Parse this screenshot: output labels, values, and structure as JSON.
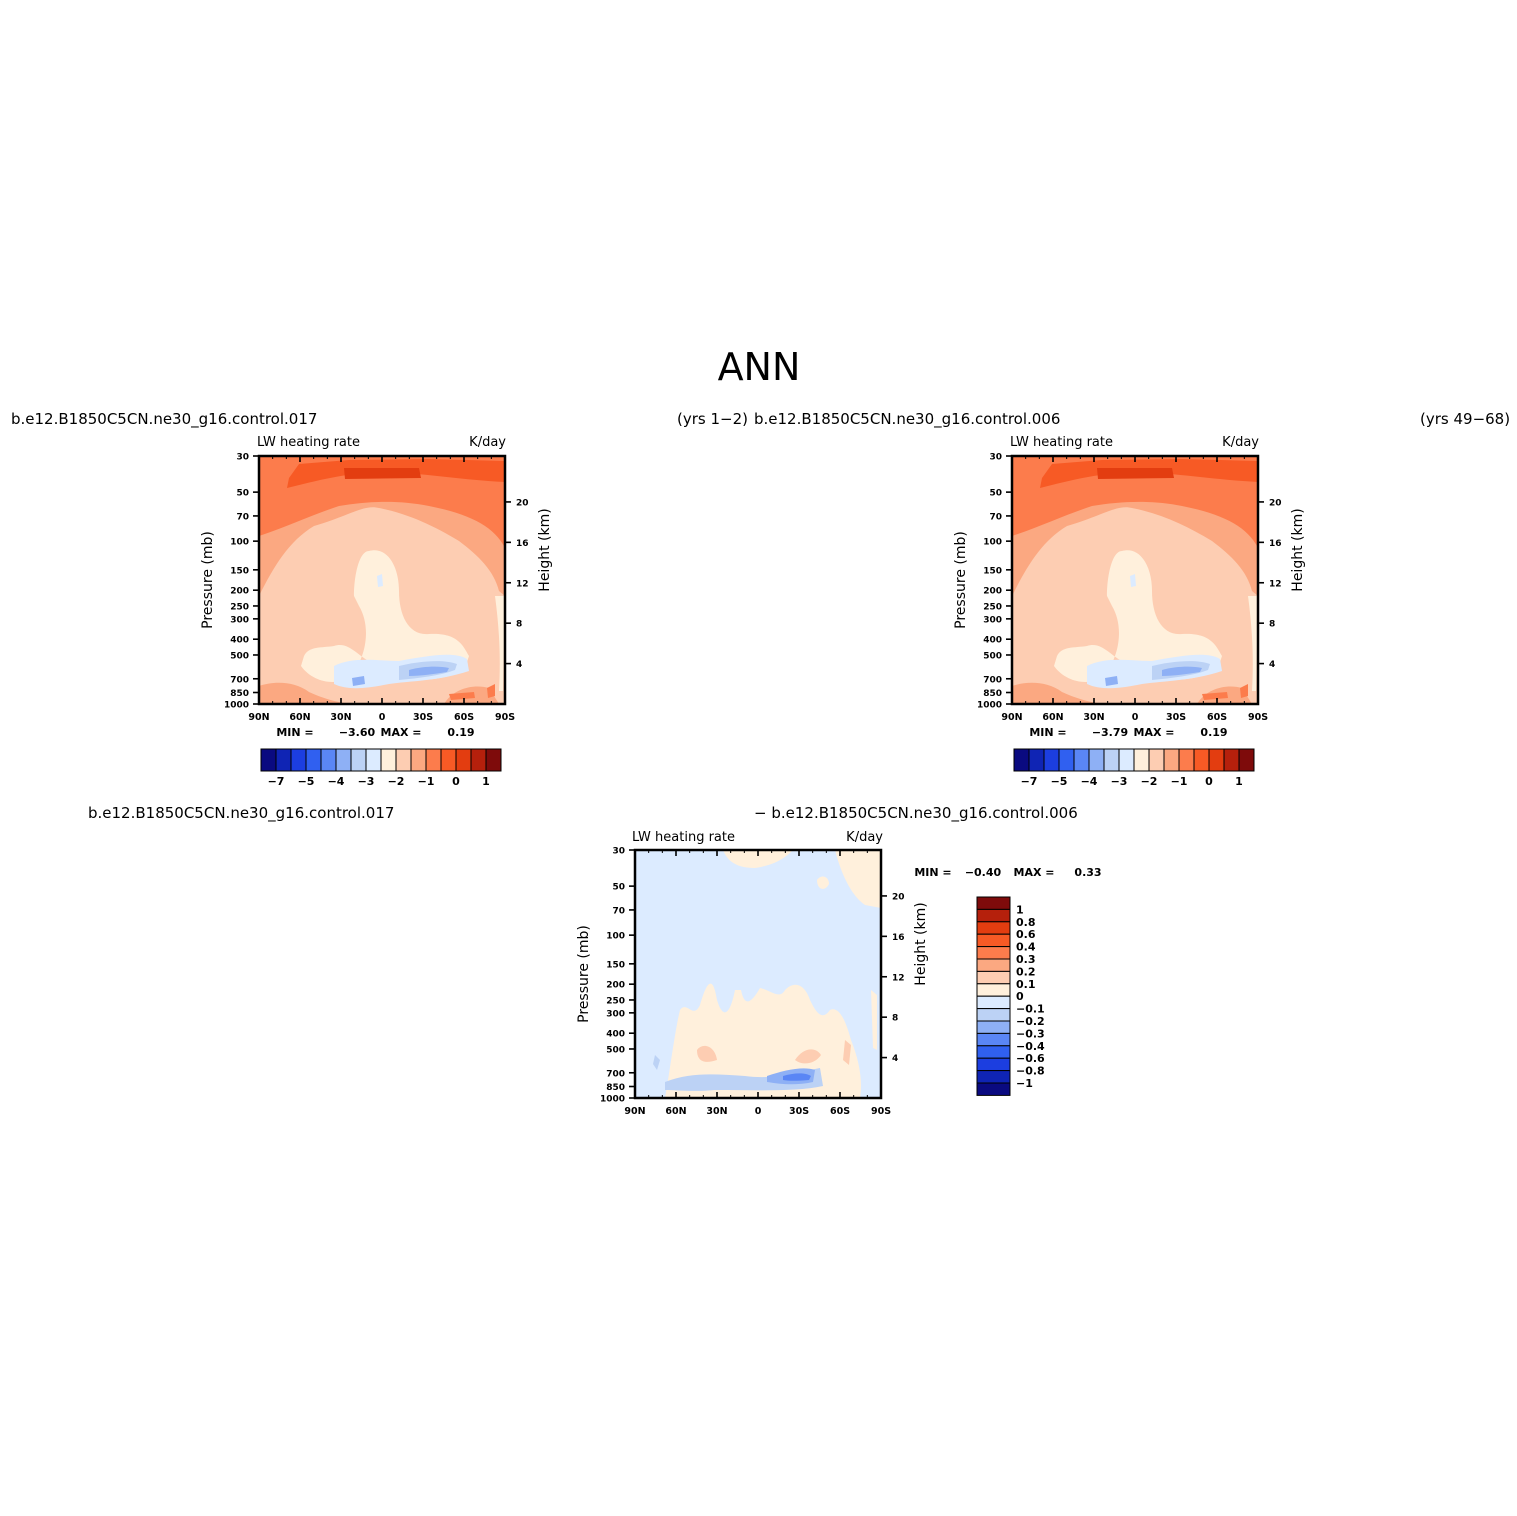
{
  "page_title": "ANN",
  "panels": {
    "top_left": {
      "case_label": "b.e12.B1850C5CN.ne30_g16.control.017",
      "years_label": "(yrs  1−2)",
      "variable": "LW  heating  rate",
      "units": "K/day",
      "min_label": "MIN  =",
      "min_value": "−3.60",
      "max_label": "MAX  =",
      "max_value": "0.19"
    },
    "top_right": {
      "case_label": "b.e12.B1850C5CN.ne30_g16.control.006",
      "years_label": "(yrs  49−68)",
      "variable": "LW  heating  rate",
      "units": "K/day",
      "min_label": "MIN  =",
      "min_value": "−3.79",
      "max_label": "MAX  =",
      "max_value": "0.19"
    },
    "bottom": {
      "case_label_left": "b.e12.B1850C5CN.ne30_g16.control.017",
      "case_label_right": "−  b.e12.B1850C5CN.ne30_g16.control.006",
      "variable": "LW  heating  rate",
      "units": "K/day",
      "min_label": "MIN  =",
      "min_value": "−0.40",
      "max_label": "MAX  =",
      "max_value": "0.33"
    }
  },
  "axis_labels": {
    "y_left": "Pressure  (mb)",
    "y_right": "Height  (km)"
  },
  "colorbars": {
    "abs_labels": [
      "−7",
      "−5",
      "−4",
      "−3",
      "−2",
      "−1",
      "0",
      "1"
    ],
    "abs_colors": [
      "#0a0a80",
      "#0f24b4",
      "#1c3ee0",
      "#3060f0",
      "#5a86f5",
      "#8eb0f5",
      "#bcd2f5",
      "#dcebff",
      "#fff0dc",
      "#fdcdb2",
      "#fba881",
      "#fc7c4c",
      "#f75a25",
      "#e33d10",
      "#b5200c",
      "#7e0b0b"
    ],
    "diff_labels": [
      "1",
      "0.8",
      "0.6",
      "0.4",
      "0.3",
      "0.2",
      "0.1",
      "0",
      "−0.1",
      "−0.2",
      "−0.3",
      "−0.4",
      "−0.6",
      "−0.8",
      "−1"
    ],
    "diff_colors": [
      "#7e0b0b",
      "#b5200c",
      "#e33d10",
      "#f75a25",
      "#fc7c4c",
      "#fba881",
      "#fdcdb2",
      "#fff0dc",
      "#dcebff",
      "#bcd2f5",
      "#8eb0f5",
      "#5a86f5",
      "#3060f0",
      "#1c3ee0",
      "#0f24b4",
      "#0a0a80"
    ]
  },
  "chart_data": [
    {
      "type": "heatmap",
      "title": "LW  heating  rate",
      "subtitle": "b.e12.B1850C5CN.ne30_g16.control.017  (yrs 1−2)",
      "units": "K/day",
      "x_ticks": [
        "90N",
        "60N",
        "30N",
        "0",
        "30S",
        "60S",
        "90S"
      ],
      "x_values": [
        90,
        60,
        30,
        0,
        -30,
        -60,
        -90
      ],
      "y_ticks": [
        "30",
        "50",
        "70",
        "100",
        "150",
        "200",
        "250",
        "300",
        "400",
        "500",
        "700",
        "850",
        "1000"
      ],
      "y_values": [
        30,
        50,
        70,
        100,
        150,
        200,
        250,
        300,
        400,
        500,
        700,
        850,
        1000
      ],
      "y2_ticks": [
        "20",
        "16",
        "12",
        "8",
        "4"
      ],
      "y2_values": [
        20,
        16,
        12,
        8,
        4
      ],
      "ylabel": "Pressure  (mb)",
      "y2label": "Height  (km)",
      "min": -3.6,
      "max": 0.19
    },
    {
      "type": "heatmap",
      "title": "LW  heating  rate",
      "subtitle": "b.e12.B1850C5CN.ne30_g16.control.006  (yrs 49−68)",
      "units": "K/day",
      "x_ticks": [
        "90N",
        "60N",
        "30N",
        "0",
        "30S",
        "60S",
        "90S"
      ],
      "x_values": [
        90,
        60,
        30,
        0,
        -30,
        -60,
        -90
      ],
      "y_ticks": [
        "30",
        "50",
        "70",
        "100",
        "150",
        "200",
        "250",
        "300",
        "400",
        "500",
        "700",
        "850",
        "1000"
      ],
      "y_values": [
        30,
        50,
        70,
        100,
        150,
        200,
        250,
        300,
        400,
        500,
        700,
        850,
        1000
      ],
      "y2_ticks": [
        "20",
        "16",
        "12",
        "8",
        "4"
      ],
      "y2_values": [
        20,
        16,
        12,
        8,
        4
      ],
      "ylabel": "Pressure  (mb)",
      "y2label": "Height  (km)",
      "min": -3.79,
      "max": 0.19
    },
    {
      "type": "heatmap",
      "title": "LW  heating  rate",
      "subtitle": "control.017 − control.006",
      "units": "K/day",
      "x_ticks": [
        "90N",
        "60N",
        "30N",
        "0",
        "30S",
        "60S",
        "90S"
      ],
      "x_values": [
        90,
        60,
        30,
        0,
        -30,
        -60,
        -90
      ],
      "y_ticks": [
        "30",
        "50",
        "70",
        "100",
        "150",
        "200",
        "250",
        "300",
        "400",
        "500",
        "700",
        "850",
        "1000"
      ],
      "y_values": [
        30,
        50,
        70,
        100,
        150,
        200,
        250,
        300,
        400,
        500,
        700,
        850,
        1000
      ],
      "y2_ticks": [
        "20",
        "16",
        "12",
        "8",
        "4"
      ],
      "y2_values": [
        20,
        16,
        12,
        8,
        4
      ],
      "ylabel": "Pressure  (mb)",
      "y2label": "Height  (km)",
      "min": -0.4,
      "max": 0.33
    }
  ]
}
